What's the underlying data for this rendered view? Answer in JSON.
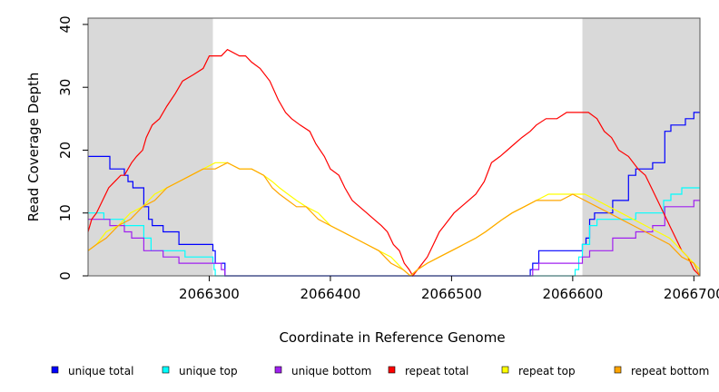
{
  "chart_data": {
    "type": "line",
    "title": "",
    "xlabel": "Coordinate in Reference Genome",
    "ylabel": "Read Coverage Depth",
    "xlim": [
      2066200,
      2066705
    ],
    "ylim": [
      0,
      41
    ],
    "x_ticks": [
      2066300,
      2066400,
      2066500,
      2066600,
      2066700
    ],
    "x_tick_labels": [
      "2066300",
      "2066400",
      "2066500",
      "2066600",
      "2066700"
    ],
    "y_ticks": [
      0,
      10,
      20,
      30,
      40
    ],
    "y_tick_labels": [
      "0",
      "10",
      "20",
      "30",
      "40"
    ],
    "shaded_regions": [
      [
        2066200,
        2066303
      ],
      [
        2066608,
        2066705
      ]
    ],
    "grid": false,
    "legend_position": "bottom",
    "series": [
      {
        "name": "unique total",
        "color": "#0000ff",
        "step": true,
        "points": [
          [
            2066200,
            19
          ],
          [
            2066218,
            17
          ],
          [
            2066230,
            16
          ],
          [
            2066233,
            15
          ],
          [
            2066237,
            14
          ],
          [
            2066246,
            11
          ],
          [
            2066250,
            9
          ],
          [
            2066253,
            8
          ],
          [
            2066262,
            7
          ],
          [
            2066275,
            5
          ],
          [
            2066303,
            4
          ],
          [
            2066305,
            2
          ],
          [
            2066313,
            0
          ],
          [
            2066563,
            0
          ],
          [
            2066565,
            1
          ],
          [
            2066567,
            2
          ],
          [
            2066572,
            4
          ],
          [
            2066605,
            4
          ],
          [
            2066608,
            5
          ],
          [
            2066611,
            6
          ],
          [
            2066614,
            9
          ],
          [
            2066618,
            10
          ],
          [
            2066633,
            12
          ],
          [
            2066646,
            16
          ],
          [
            2066652,
            17
          ],
          [
            2066666,
            18
          ],
          [
            2066676,
            23
          ],
          [
            2066681,
            24
          ],
          [
            2066693,
            25
          ],
          [
            2066700,
            26
          ],
          [
            2066705,
            26
          ]
        ]
      },
      {
        "name": "unique top",
        "color": "#00ffff",
        "step": true,
        "points": [
          [
            2066200,
            10
          ],
          [
            2066213,
            9
          ],
          [
            2066230,
            8
          ],
          [
            2066246,
            6
          ],
          [
            2066252,
            4
          ],
          [
            2066280,
            3
          ],
          [
            2066303,
            2
          ],
          [
            2066304,
            1
          ],
          [
            2066305,
            0
          ],
          [
            2066600,
            0
          ],
          [
            2066602,
            1
          ],
          [
            2066605,
            3
          ],
          [
            2066608,
            5
          ],
          [
            2066614,
            8
          ],
          [
            2066620,
            9
          ],
          [
            2066640,
            9
          ],
          [
            2066652,
            10
          ],
          [
            2066675,
            12
          ],
          [
            2066681,
            13
          ],
          [
            2066690,
            14
          ],
          [
            2066705,
            14
          ]
        ]
      },
      {
        "name": "unique bottom",
        "color": "#a020f0",
        "step": true,
        "points": [
          [
            2066200,
            9
          ],
          [
            2066218,
            8
          ],
          [
            2066230,
            7
          ],
          [
            2066236,
            6
          ],
          [
            2066246,
            4
          ],
          [
            2066262,
            3
          ],
          [
            2066275,
            2
          ],
          [
            2066303,
            2
          ],
          [
            2066310,
            1
          ],
          [
            2066313,
            0
          ],
          [
            2066563,
            0
          ],
          [
            2066567,
            1
          ],
          [
            2066572,
            2
          ],
          [
            2066605,
            2
          ],
          [
            2066608,
            3
          ],
          [
            2066614,
            4
          ],
          [
            2066633,
            6
          ],
          [
            2066652,
            7
          ],
          [
            2066666,
            8
          ],
          [
            2066676,
            11
          ],
          [
            2066700,
            12
          ],
          [
            2066705,
            12
          ]
        ]
      },
      {
        "name": "repeat total",
        "color": "#ff0000",
        "step": false,
        "points": [
          [
            2066200,
            7
          ],
          [
            2066203,
            9
          ],
          [
            2066207,
            10
          ],
          [
            2066212,
            12
          ],
          [
            2066217,
            14
          ],
          [
            2066222,
            15
          ],
          [
            2066227,
            16
          ],
          [
            2066230,
            16
          ],
          [
            2066236,
            18
          ],
          [
            2066240,
            19
          ],
          [
            2066245,
            20
          ],
          [
            2066248,
            22
          ],
          [
            2066253,
            24
          ],
          [
            2066259,
            25
          ],
          [
            2066265,
            27
          ],
          [
            2066272,
            29
          ],
          [
            2066278,
            31
          ],
          [
            2066287,
            32
          ],
          [
            2066295,
            33
          ],
          [
            2066300,
            35
          ],
          [
            2066305,
            35
          ],
          [
            2066310,
            35
          ],
          [
            2066315,
            36
          ],
          [
            2066325,
            35
          ],
          [
            2066330,
            35
          ],
          [
            2066335,
            34
          ],
          [
            2066342,
            33
          ],
          [
            2066350,
            31
          ],
          [
            2066357,
            28
          ],
          [
            2066363,
            26
          ],
          [
            2066368,
            25
          ],
          [
            2066375,
            24
          ],
          [
            2066383,
            23
          ],
          [
            2066388,
            21
          ],
          [
            2066395,
            19
          ],
          [
            2066400,
            17
          ],
          [
            2066407,
            16
          ],
          [
            2066412,
            14
          ],
          [
            2066418,
            12
          ],
          [
            2066424,
            11
          ],
          [
            2066430,
            10
          ],
          [
            2066436,
            9
          ],
          [
            2066442,
            8
          ],
          [
            2066447,
            7
          ],
          [
            2066452,
            5
          ],
          [
            2066457,
            4
          ],
          [
            2066461,
            2
          ],
          [
            2066465,
            1
          ],
          [
            2066468,
            0
          ],
          [
            2066472,
            1
          ],
          [
            2066476,
            2
          ],
          [
            2066480,
            3
          ],
          [
            2066485,
            5
          ],
          [
            2066490,
            7
          ],
          [
            2066494,
            8
          ],
          [
            2066498,
            9
          ],
          [
            2066502,
            10
          ],
          [
            2066508,
            11
          ],
          [
            2066514,
            12
          ],
          [
            2066520,
            13
          ],
          [
            2066527,
            15
          ],
          [
            2066533,
            18
          ],
          [
            2066540,
            19
          ],
          [
            2066546,
            20
          ],
          [
            2066552,
            21
          ],
          [
            2066558,
            22
          ],
          [
            2066565,
            23
          ],
          [
            2066570,
            24
          ],
          [
            2066578,
            25
          ],
          [
            2066587,
            25
          ],
          [
            2066595,
            26
          ],
          [
            2066605,
            26
          ],
          [
            2066613,
            26
          ],
          [
            2066620,
            25
          ],
          [
            2066626,
            23
          ],
          [
            2066632,
            22
          ],
          [
            2066638,
            20
          ],
          [
            2066646,
            19
          ],
          [
            2066654,
            17
          ],
          [
            2066660,
            16
          ],
          [
            2066665,
            14
          ],
          [
            2066670,
            12
          ],
          [
            2066675,
            10
          ],
          [
            2066680,
            8
          ],
          [
            2066685,
            6
          ],
          [
            2066690,
            4
          ],
          [
            2066695,
            3
          ],
          [
            2066700,
            1
          ],
          [
            2066705,
            0
          ]
        ]
      },
      {
        "name": "repeat top",
        "color": "#ffff00",
        "step": false,
        "points": [
          [
            2066200,
            4
          ],
          [
            2066207,
            5
          ],
          [
            2066215,
            7
          ],
          [
            2066225,
            8
          ],
          [
            2066235,
            10
          ],
          [
            2066245,
            11
          ],
          [
            2066255,
            13
          ],
          [
            2066265,
            14
          ],
          [
            2066275,
            15
          ],
          [
            2066285,
            16
          ],
          [
            2066295,
            17
          ],
          [
            2066305,
            18
          ],
          [
            2066315,
            18
          ],
          [
            2066325,
            17
          ],
          [
            2066335,
            17
          ],
          [
            2066345,
            16
          ],
          [
            2066352,
            15
          ],
          [
            2066358,
            14
          ],
          [
            2066365,
            13
          ],
          [
            2066372,
            12
          ],
          [
            2066380,
            11
          ],
          [
            2066390,
            10
          ],
          [
            2066400,
            8
          ],
          [
            2066410,
            7
          ],
          [
            2066420,
            6
          ],
          [
            2066430,
            5
          ],
          [
            2066440,
            4
          ],
          [
            2066450,
            3
          ],
          [
            2066460,
            1
          ],
          [
            2066466,
            0
          ],
          [
            2066472,
            1
          ],
          [
            2066480,
            2
          ],
          [
            2066490,
            3
          ],
          [
            2066500,
            4
          ],
          [
            2066510,
            5
          ],
          [
            2066520,
            6
          ],
          [
            2066528,
            7
          ],
          [
            2066535,
            8
          ],
          [
            2066542,
            9
          ],
          [
            2066550,
            10
          ],
          [
            2066560,
            11
          ],
          [
            2066570,
            12
          ],
          [
            2066580,
            13
          ],
          [
            2066590,
            13
          ],
          [
            2066600,
            13
          ],
          [
            2066610,
            13
          ],
          [
            2066620,
            12
          ],
          [
            2066630,
            11
          ],
          [
            2066640,
            10
          ],
          [
            2066650,
            9
          ],
          [
            2066660,
            8
          ],
          [
            2066670,
            7
          ],
          [
            2066680,
            6
          ],
          [
            2066690,
            4
          ],
          [
            2066700,
            2
          ],
          [
            2066705,
            1
          ]
        ]
      },
      {
        "name": "repeat bottom",
        "color": "#ffa500",
        "step": false,
        "points": [
          [
            2066200,
            4
          ],
          [
            2066207,
            5
          ],
          [
            2066215,
            6
          ],
          [
            2066225,
            8
          ],
          [
            2066235,
            9
          ],
          [
            2066245,
            11
          ],
          [
            2066255,
            12
          ],
          [
            2066265,
            14
          ],
          [
            2066275,
            15
          ],
          [
            2066285,
            16
          ],
          [
            2066295,
            17
          ],
          [
            2066305,
            17
          ],
          [
            2066315,
            18
          ],
          [
            2066325,
            17
          ],
          [
            2066335,
            17
          ],
          [
            2066345,
            16
          ],
          [
            2066352,
            14
          ],
          [
            2066358,
            13
          ],
          [
            2066365,
            12
          ],
          [
            2066372,
            11
          ],
          [
            2066380,
            11
          ],
          [
            2066390,
            9
          ],
          [
            2066400,
            8
          ],
          [
            2066410,
            7
          ],
          [
            2066420,
            6
          ],
          [
            2066430,
            5
          ],
          [
            2066440,
            4
          ],
          [
            2066450,
            2
          ],
          [
            2066460,
            1
          ],
          [
            2066466,
            0
          ],
          [
            2066472,
            1
          ],
          [
            2066480,
            2
          ],
          [
            2066490,
            3
          ],
          [
            2066500,
            4
          ],
          [
            2066510,
            5
          ],
          [
            2066520,
            6
          ],
          [
            2066528,
            7
          ],
          [
            2066535,
            8
          ],
          [
            2066542,
            9
          ],
          [
            2066550,
            10
          ],
          [
            2066560,
            11
          ],
          [
            2066570,
            12
          ],
          [
            2066580,
            12
          ],
          [
            2066590,
            12
          ],
          [
            2066600,
            13
          ],
          [
            2066610,
            12
          ],
          [
            2066620,
            11
          ],
          [
            2066630,
            10
          ],
          [
            2066640,
            9
          ],
          [
            2066650,
            8
          ],
          [
            2066660,
            7
          ],
          [
            2066670,
            6
          ],
          [
            2066680,
            5
          ],
          [
            2066690,
            3
          ],
          [
            2066700,
            2
          ],
          [
            2066705,
            0
          ]
        ]
      }
    ]
  }
}
